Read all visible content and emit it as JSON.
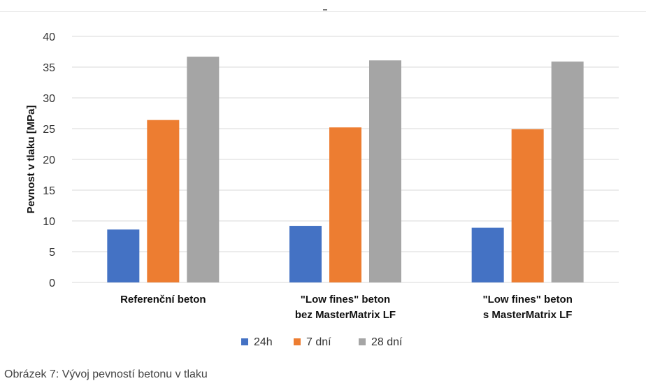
{
  "chart_data": {
    "type": "bar",
    "title": "",
    "categories": [
      [
        "Referenční beton"
      ],
      [
        "\"Low fines\" beton",
        "bez MasterMatrix LF"
      ],
      [
        "\"Low fines\" beton",
        "s MasterMatrix LF"
      ]
    ],
    "series": [
      {
        "name": "24h",
        "color": "#4472C4",
        "values": [
          8.6,
          9.2,
          8.9
        ]
      },
      {
        "name": "7 dní",
        "color": "#ED7D31",
        "values": [
          26.4,
          25.2,
          24.9
        ]
      },
      {
        "name": "28 dní",
        "color": "#A5A5A5",
        "values": [
          36.7,
          36.1,
          35.9
        ]
      }
    ],
    "ylabel": "Pevnost v tlaku [MPa]",
    "xlabel": "",
    "ylim": [
      0,
      40
    ],
    "yticks": [
      0,
      5,
      10,
      15,
      20,
      25,
      30,
      35,
      40
    ],
    "grid": true,
    "legend_position": "bottom"
  },
  "caption": "Obrázek 7: Vývoj pevností betonu v tlaku"
}
